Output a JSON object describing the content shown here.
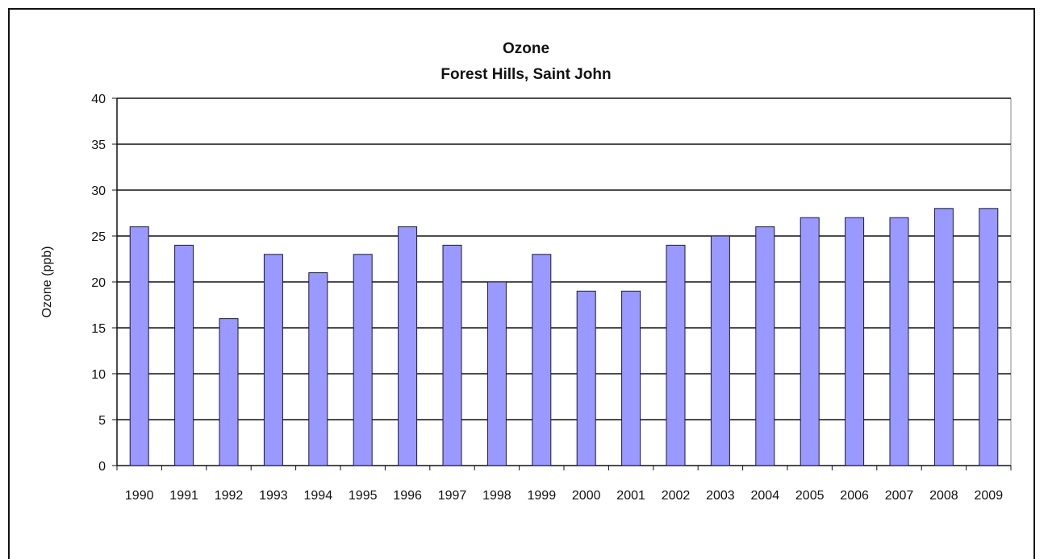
{
  "chart_data": {
    "type": "bar",
    "title": "Ozone",
    "subtitle": "Forest Hills, Saint John",
    "xlabel": "",
    "ylabel": "Ozone (ppb)",
    "ylim": [
      0,
      40
    ],
    "yticks": [
      0,
      5,
      10,
      15,
      20,
      25,
      30,
      35,
      40
    ],
    "grid": true,
    "legend": "none",
    "bar_color": "#9999ff",
    "categories": [
      "1990",
      "1991",
      "1992",
      "1993",
      "1994",
      "1995",
      "1996",
      "1997",
      "1998",
      "1999",
      "2000",
      "2001",
      "2002",
      "2003",
      "2004",
      "2005",
      "2006",
      "2007",
      "2008",
      "2009"
    ],
    "values": [
      26,
      24,
      16,
      23,
      21,
      23,
      26,
      24,
      20,
      23,
      19,
      19,
      24,
      25,
      26,
      27,
      27,
      27,
      28,
      28
    ]
  }
}
